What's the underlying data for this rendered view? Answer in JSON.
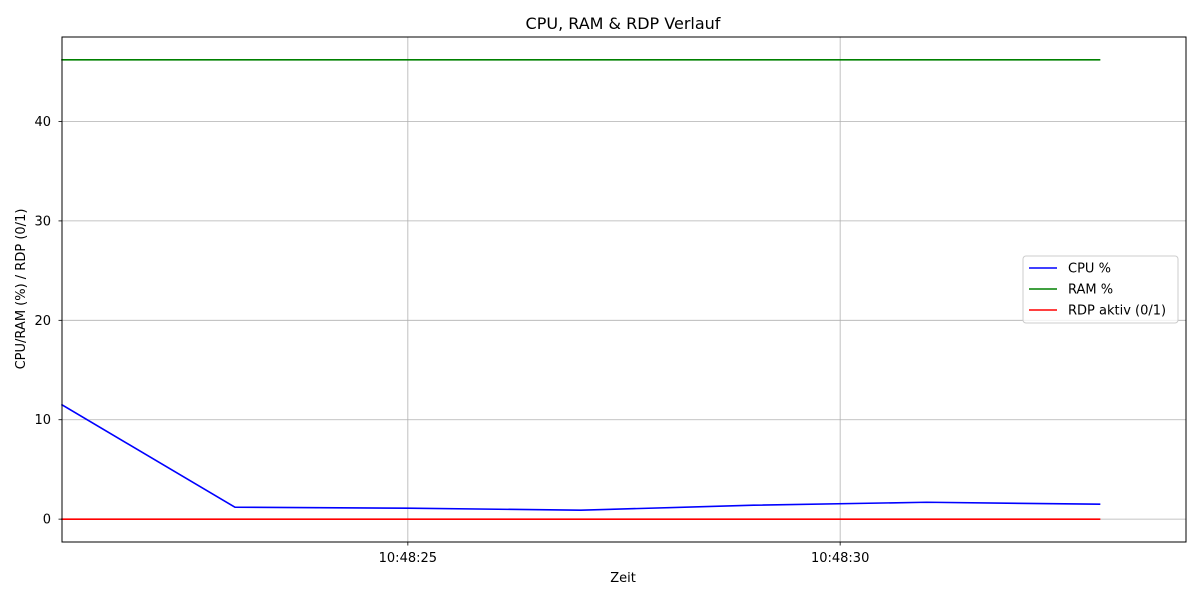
{
  "chart_data": {
    "type": "line",
    "title": "CPU, RAM & RDP Verlauf",
    "xlabel": "Zeit",
    "ylabel": "CPU/RAM (%) / RDP (0/1)",
    "x": [
      "10:48:21",
      "10:48:23",
      "10:48:25",
      "10:48:27",
      "10:48:29",
      "10:48:31",
      "10:48:33"
    ],
    "xlim": [
      "10:48:21",
      "10:48:34"
    ],
    "x_ticks": [
      {
        "label": "10:48:25"
      },
      {
        "label": "10:48:30"
      }
    ],
    "ylim": [
      -2.3,
      48.5
    ],
    "y_ticks": [
      0,
      10,
      20,
      30,
      40
    ],
    "grid": true,
    "legend_position": "center-right",
    "series": [
      {
        "name": "CPU %",
        "color": "#0000ff",
        "values": [
          11.5,
          1.2,
          1.1,
          0.9,
          1.4,
          1.7,
          1.5
        ]
      },
      {
        "name": "RAM %",
        "color": "#008000",
        "values": [
          46.2,
          46.2,
          46.2,
          46.2,
          46.2,
          46.2,
          46.2
        ]
      },
      {
        "name": "RDP aktiv (0/1)",
        "color": "#ff0000",
        "values": [
          0,
          0,
          0,
          0,
          0,
          0,
          0
        ]
      }
    ]
  }
}
